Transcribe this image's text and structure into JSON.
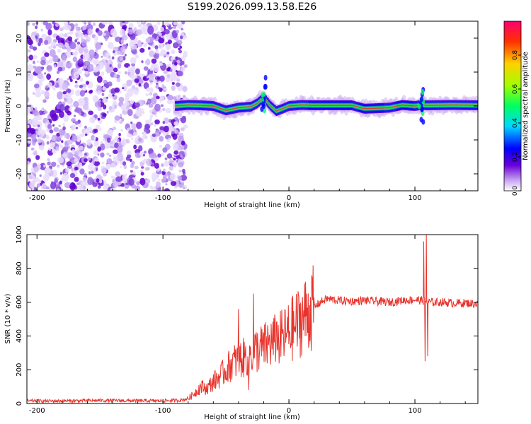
{
  "title": "S199.2026.099.13.58.E26",
  "chart_data": [
    {
      "type": "heatmap",
      "name": "spectrogram",
      "xlabel": "Height of straight line (km)",
      "ylabel": "Frequency (Hz)",
      "xlim": [
        -208,
        150
      ],
      "ylim": [
        -25,
        25
      ],
      "xticks": [
        -200,
        -100,
        0,
        100
      ],
      "yticks": [
        -20,
        -10,
        0,
        10,
        20
      ],
      "noise_region_x": [
        -208,
        -82
      ],
      "ridge_x": [
        -90,
        -80,
        -70,
        -60,
        -50,
        -40,
        -30,
        -25,
        -20,
        -15,
        -10,
        -5,
        0,
        10,
        20,
        50,
        60,
        80,
        90,
        100,
        105,
        110,
        130,
        150
      ],
      "ridge_freq": [
        0,
        0.3,
        0.2,
        0,
        -1.3,
        -0.5,
        -0.2,
        0.8,
        2.5,
        0.2,
        -1.5,
        -0.8,
        0,
        0.3,
        0.2,
        0.2,
        -0.8,
        -0.5,
        0.3,
        0,
        0.3,
        0.2,
        0.3,
        0.2
      ],
      "colorbar": {
        "label": "Normalized spectral amplitude",
        "ticks": [
          "0.0",
          "0.2",
          "0.4",
          "0.6",
          "0.8"
        ],
        "range": [
          0,
          1
        ]
      }
    },
    {
      "type": "line",
      "name": "snr",
      "xlabel": "Height of straight line (km)",
      "ylabel": "SNR (10 * v/v)",
      "xlim": [
        -208,
        150
      ],
      "ylim": [
        0,
        1000
      ],
      "xticks": [
        -200,
        -100,
        0,
        100
      ],
      "yticks": [
        0,
        200,
        400,
        600,
        800,
        1000
      ],
      "color": "#e8332b",
      "x": [
        -208,
        -180,
        -150,
        -120,
        -100,
        -85,
        -80,
        -75,
        -70,
        -65,
        -60,
        -55,
        -50,
        -45,
        -40,
        -35,
        -30,
        -25,
        -20,
        -15,
        -10,
        -5,
        0,
        5,
        10,
        15,
        20,
        25,
        30,
        40,
        50,
        60,
        70,
        80,
        90,
        100,
        105,
        110,
        120,
        130,
        140,
        150
      ],
      "y": [
        15,
        15,
        18,
        16,
        16,
        20,
        30,
        60,
        100,
        90,
        130,
        160,
        200,
        240,
        260,
        270,
        300,
        320,
        330,
        360,
        370,
        390,
        420,
        460,
        500,
        540,
        570,
        600,
        620,
        610,
        605,
        610,
        605,
        600,
        610,
        615,
        610,
        600,
        600,
        595,
        595,
        590
      ],
      "spikes": [
        {
          "x": -40,
          "y": 560
        },
        {
          "x": -32,
          "y": 80
        },
        {
          "x": -28,
          "y": 650
        },
        {
          "x": -10,
          "y": 480
        },
        {
          "x": 107,
          "y": 960
        },
        {
          "x": 108,
          "y": 250
        },
        {
          "x": 109,
          "y": 1000
        },
        {
          "x": 110,
          "y": 280
        }
      ]
    }
  ]
}
